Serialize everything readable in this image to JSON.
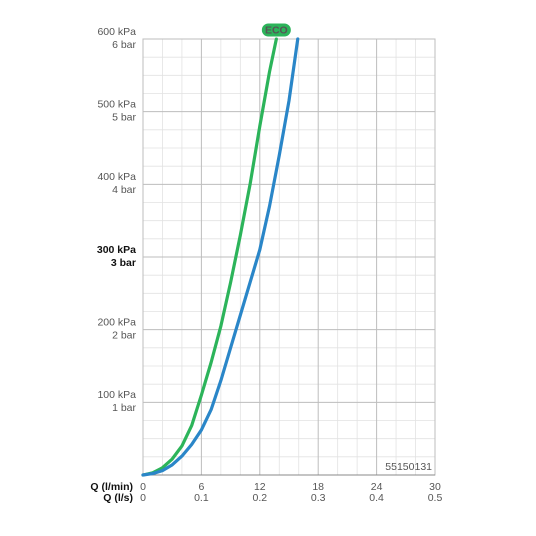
{
  "chart_data": {
    "type": "line",
    "x_label": "Q (l/min)",
    "x2_label": "Q (l/s)",
    "xlim": [
      0,
      30
    ],
    "xticks": [
      0,
      6,
      12,
      18,
      24,
      30
    ],
    "x2lim": [
      0,
      0.5
    ],
    "x2ticks": [
      0,
      0.1,
      0.2,
      0.3,
      0.4,
      0.5
    ],
    "xminorticks": [
      2,
      4,
      8,
      10,
      14,
      16,
      20,
      22,
      26,
      28
    ],
    "ylim": [
      0,
      600
    ],
    "yticks": [
      {
        "value": 100,
        "label": "100 kPa"
      },
      {
        "value": 200,
        "label": "200 kPa"
      },
      {
        "value": 300,
        "label": "300 kPa"
      },
      {
        "value": 400,
        "label": "400 kPa"
      },
      {
        "value": 500,
        "label": "500 kPa"
      },
      {
        "value": 600,
        "label": "600 kPa"
      }
    ],
    "y2lim": [
      0,
      6
    ],
    "y2ticks": [
      {
        "value": 1,
        "label": "1 bar"
      },
      {
        "value": 2,
        "label": "2 bar"
      },
      {
        "value": 3,
        "label": "3 bar"
      },
      {
        "value": 4,
        "label": "4 bar"
      },
      {
        "value": 5,
        "label": "5 bar"
      },
      {
        "value": 6,
        "label": "6 bar"
      }
    ],
    "yminorticks": [
      25,
      50,
      75,
      125,
      150,
      175,
      225,
      250,
      275,
      325,
      350,
      375,
      425,
      450,
      475,
      525,
      550,
      575
    ],
    "bold_ytick": 300,
    "grid": true,
    "annotation": "55150131",
    "series": [
      {
        "name": "ECO",
        "color": "#2cb45a",
        "x": [
          0,
          1,
          2,
          3,
          4,
          5,
          6,
          7,
          8,
          9,
          10,
          11,
          12,
          13,
          13.7
        ],
        "values": [
          0,
          3,
          10,
          22,
          40,
          68,
          110,
          155,
          205,
          265,
          330,
          400,
          480,
          555,
          600
        ]
      },
      {
        "color": "#2a86c8",
        "x": [
          0,
          1,
          2,
          3,
          4,
          5,
          6,
          7,
          8,
          9,
          10,
          11,
          12,
          13,
          14,
          15,
          15.9
        ],
        "values": [
          0,
          2,
          6,
          14,
          26,
          42,
          62,
          90,
          130,
          175,
          220,
          265,
          310,
          370,
          440,
          515,
          600
        ]
      }
    ]
  }
}
